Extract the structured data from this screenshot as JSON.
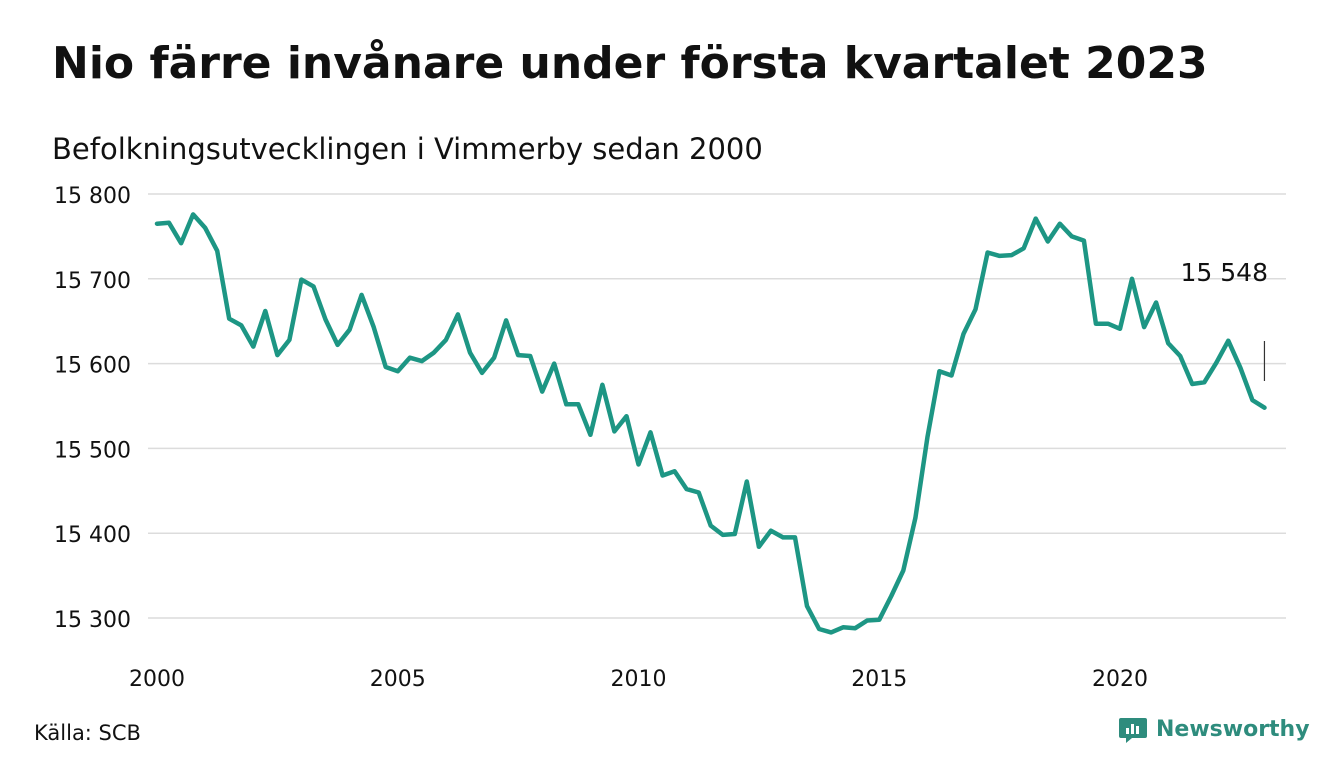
{
  "title": "Nio färre invånare under första kvartalet 2023",
  "subtitle": "Befolkningsutvecklingen i Vimmerby sedan 2000",
  "source": "Källa: SCB",
  "brand": "Newsworthy",
  "brand_icon": "newsworthy-chart-icon",
  "colors": {
    "line": "#1d9684",
    "grid": "#dcdcdc",
    "text": "#111111",
    "brand": "#2e8c7d"
  },
  "chart_data": {
    "type": "line",
    "x_start": 2000.0,
    "x_step": 0.25,
    "xlim": [
      2000,
      2023.5
    ],
    "ylim": [
      15280,
      15800
    ],
    "y_ticks": [
      15300,
      15400,
      15500,
      15600,
      15700,
      15800
    ],
    "y_tick_labels": [
      "15 300",
      "15 400",
      "15 500",
      "15 600",
      "15 700",
      "15 800"
    ],
    "x_ticks": [
      2000,
      2005,
      2010,
      2015,
      2020
    ],
    "x_tick_labels": [
      "2000",
      "2005",
      "2010",
      "2015",
      "2020"
    ],
    "grid": true,
    "values": [
      15765,
      15766,
      15742,
      15776,
      15760,
      15733,
      15653,
      15645,
      15620,
      15662,
      15610,
      15628,
      15699,
      15691,
      15652,
      15622,
      15640,
      15681,
      15643,
      15596,
      15591,
      15607,
      15603,
      15613,
      15628,
      15658,
      15613,
      15589,
      15607,
      15651,
      15610,
      15609,
      15567,
      15600,
      15552,
      15552,
      15516,
      15575,
      15520,
      15538,
      15481,
      15519,
      15468,
      15473,
      15452,
      15448,
      15409,
      15398,
      15399,
      15461,
      15384,
      15403,
      15395,
      15395,
      15314,
      15287,
      15283,
      15289,
      15288,
      15297,
      15298,
      15326,
      15356,
      15418,
      15513,
      15591,
      15586,
      15635,
      15664,
      15731,
      15727,
      15728,
      15736,
      15771,
      15744,
      15765,
      15750,
      15745,
      15647,
      15647,
      15641,
      15700,
      15643,
      15672,
      15624,
      15609,
      15576,
      15578,
      15601,
      15627,
      15595,
      15557,
      15548
    ],
    "end_label": "15 548"
  }
}
